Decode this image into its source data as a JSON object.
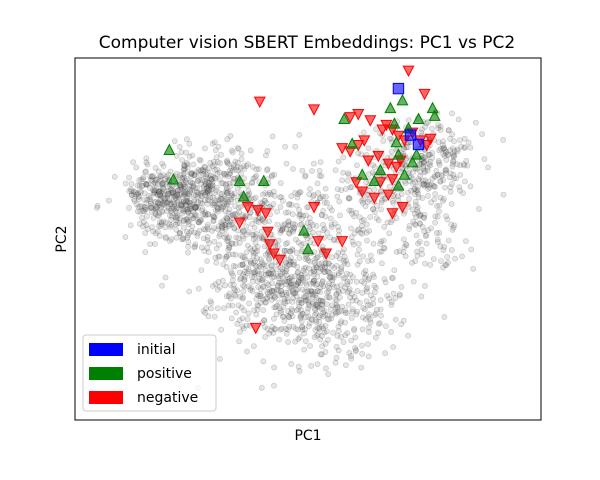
{
  "chart_data": {
    "type": "scatter",
    "title": "Computer vision SBERT Embeddings: PC1 vs PC2",
    "xlabel": "PC1",
    "ylabel": "PC2",
    "xlim": [
      -1.0,
      1.0
    ],
    "ylim": [
      -1.0,
      1.0
    ],
    "x_ticks_visible": false,
    "y_ticks_visible": false,
    "grid": false,
    "legend_position": "lower-left",
    "background": {
      "name": "",
      "color": "#808080",
      "opacity": 0.2,
      "marker": "circle",
      "approx_count": 2200,
      "regions": [
        {
          "cx": -0.72,
          "cy": 0.16,
          "sx": 0.1,
          "sy": 0.12,
          "weight": 0.12
        },
        {
          "cx": -0.58,
          "cy": 0.2,
          "sx": 0.12,
          "sy": 0.12,
          "weight": 0.1
        },
        {
          "cx": -0.4,
          "cy": 0.12,
          "sx": 0.14,
          "sy": 0.18,
          "weight": 0.12
        },
        {
          "cx": -0.15,
          "cy": -0.3,
          "sx": 0.18,
          "sy": 0.22,
          "weight": 0.22
        },
        {
          "cx": 0.08,
          "cy": -0.52,
          "sx": 0.18,
          "sy": 0.18,
          "weight": 0.15
        },
        {
          "cx": 0.15,
          "cy": 0.0,
          "sx": 0.14,
          "sy": 0.18,
          "weight": 0.06
        },
        {
          "cx": 0.48,
          "cy": 0.3,
          "sx": 0.14,
          "sy": 0.18,
          "weight": 0.09
        },
        {
          "cx": 0.62,
          "cy": 0.42,
          "sx": 0.12,
          "sy": 0.14,
          "weight": 0.07
        },
        {
          "cx": 0.55,
          "cy": -0.1,
          "sx": 0.14,
          "sy": 0.18,
          "weight": 0.04
        },
        {
          "cx": -0.25,
          "cy": 0.25,
          "sx": 0.18,
          "sy": 0.14,
          "weight": 0.03
        }
      ]
    },
    "series": [
      {
        "name": "initial",
        "color": "#0000ff",
        "marker": "square",
        "points": [
          {
            "x": 0.45,
            "y": 0.88
          },
          {
            "x": 0.51,
            "y": 0.58
          },
          {
            "x": 0.55,
            "y": 0.52
          }
        ]
      },
      {
        "name": "positive",
        "color": "#008000",
        "marker": "triangle-up",
        "points": [
          {
            "x": -0.69,
            "y": 0.48
          },
          {
            "x": -0.67,
            "y": 0.29
          },
          {
            "x": -0.34,
            "y": 0.28
          },
          {
            "x": -0.32,
            "y": 0.18
          },
          {
            "x": -0.22,
            "y": 0.28
          },
          {
            "x": -0.02,
            "y": -0.04
          },
          {
            "x": 0.0,
            "y": -0.16
          },
          {
            "x": 0.18,
            "y": 0.68
          },
          {
            "x": 0.22,
            "y": 0.52
          },
          {
            "x": 0.27,
            "y": 0.32
          },
          {
            "x": 0.33,
            "y": 0.28
          },
          {
            "x": 0.36,
            "y": 0.35
          },
          {
            "x": 0.41,
            "y": 0.75
          },
          {
            "x": 0.43,
            "y": 0.65
          },
          {
            "x": 0.44,
            "y": 0.53
          },
          {
            "x": 0.45,
            "y": 0.45
          },
          {
            "x": 0.45,
            "y": 0.25
          },
          {
            "x": 0.47,
            "y": 0.8
          },
          {
            "x": 0.48,
            "y": 0.32
          },
          {
            "x": 0.5,
            "y": 0.62
          },
          {
            "x": 0.52,
            "y": 0.4
          },
          {
            "x": 0.54,
            "y": 0.45
          },
          {
            "x": 0.55,
            "y": 0.68
          },
          {
            "x": 0.62,
            "y": 0.75
          },
          {
            "x": 0.63,
            "y": 0.7
          }
        ]
      },
      {
        "name": "negative",
        "color": "#ff0000",
        "marker": "triangle-down",
        "points": [
          {
            "x": 0.5,
            "y": 1.0
          },
          {
            "x": 0.58,
            "y": 0.85
          },
          {
            "x": -0.24,
            "y": 0.8
          },
          {
            "x": 0.03,
            "y": 0.75
          },
          {
            "x": 0.21,
            "y": 0.7
          },
          {
            "x": 0.25,
            "y": 0.72
          },
          {
            "x": 0.31,
            "y": 0.68
          },
          {
            "x": 0.37,
            "y": 0.62
          },
          {
            "x": 0.39,
            "y": 0.65
          },
          {
            "x": 0.42,
            "y": 0.62
          },
          {
            "x": 0.45,
            "y": 0.58
          },
          {
            "x": 0.48,
            "y": 0.55
          },
          {
            "x": 0.52,
            "y": 0.6
          },
          {
            "x": 0.56,
            "y": 0.55
          },
          {
            "x": 0.59,
            "y": 0.52
          },
          {
            "x": 0.61,
            "y": 0.56
          },
          {
            "x": 0.17,
            "y": 0.5
          },
          {
            "x": 0.21,
            "y": 0.48
          },
          {
            "x": 0.25,
            "y": 0.52
          },
          {
            "x": 0.28,
            "y": 0.55
          },
          {
            "x": 0.3,
            "y": 0.42
          },
          {
            "x": 0.35,
            "y": 0.45
          },
          {
            "x": 0.4,
            "y": 0.4
          },
          {
            "x": 0.44,
            "y": 0.38
          },
          {
            "x": 0.46,
            "y": 0.42
          },
          {
            "x": 0.24,
            "y": 0.28
          },
          {
            "x": 0.27,
            "y": 0.22
          },
          {
            "x": 0.33,
            "y": 0.18
          },
          {
            "x": 0.36,
            "y": 0.28
          },
          {
            "x": 0.4,
            "y": 0.2
          },
          {
            "x": 0.42,
            "y": 0.08
          },
          {
            "x": 0.42,
            "y": 0.3
          },
          {
            "x": 0.47,
            "y": 0.12
          },
          {
            "x": -0.34,
            "y": 0.02
          },
          {
            "x": -0.3,
            "y": 0.12
          },
          {
            "x": -0.25,
            "y": 0.1
          },
          {
            "x": -0.21,
            "y": 0.08
          },
          {
            "x": -0.2,
            "y": -0.04
          },
          {
            "x": -0.19,
            "y": -0.12
          },
          {
            "x": -0.17,
            "y": -0.18
          },
          {
            "x": -0.14,
            "y": -0.22
          },
          {
            "x": 0.03,
            "y": 0.12
          },
          {
            "x": 0.05,
            "y": -0.1
          },
          {
            "x": 0.09,
            "y": -0.18
          },
          {
            "x": 0.17,
            "y": -0.1
          },
          {
            "x": -0.26,
            "y": -0.66
          }
        ]
      }
    ]
  }
}
